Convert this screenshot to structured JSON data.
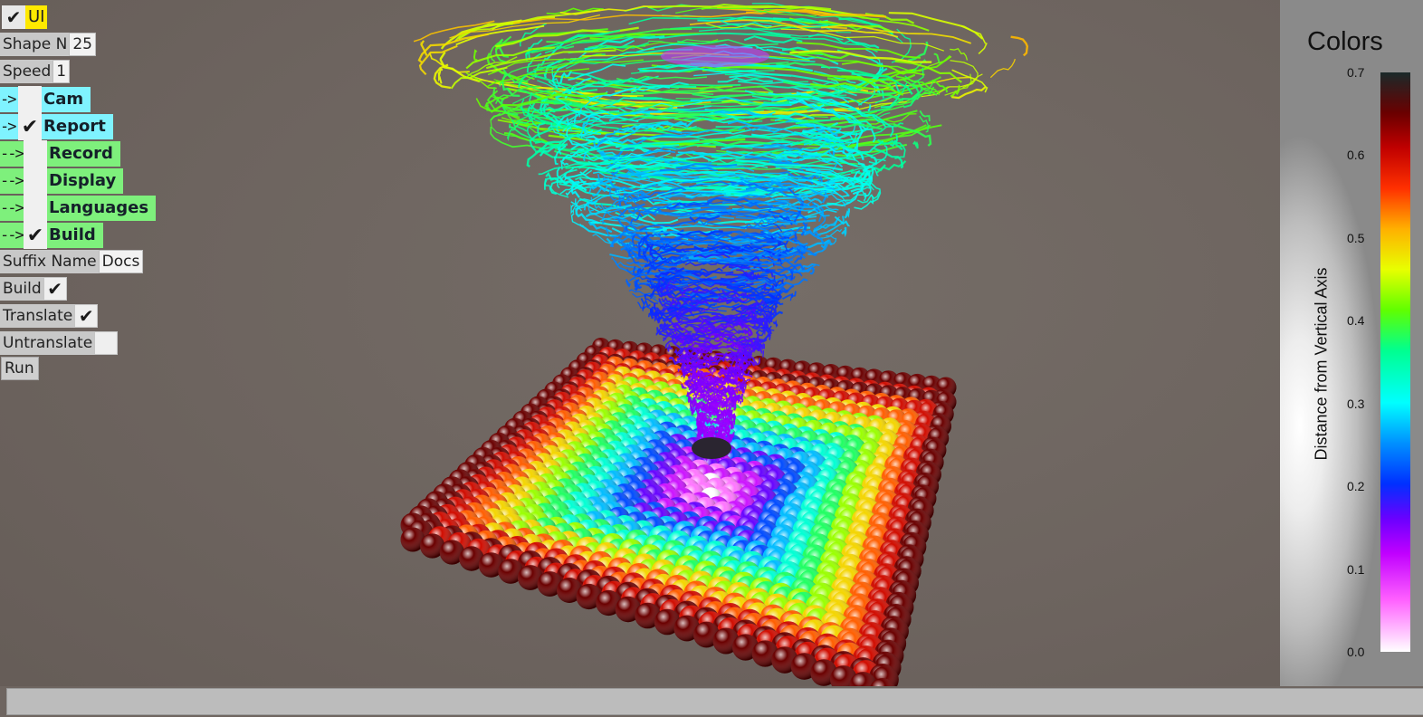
{
  "ui_toggle": {
    "label": "UI",
    "checked": true,
    "accent": "#ffe900"
  },
  "fields": {
    "shape_n": {
      "label": "Shape N",
      "value": "25"
    },
    "speed": {
      "label": "Speed",
      "value": "1"
    }
  },
  "nav": [
    {
      "arrow": "->",
      "label": "Cam",
      "checked": false,
      "color": "#7ff3ff"
    },
    {
      "arrow": "->",
      "label": "Report",
      "checked": true,
      "color": "#7ff3ff"
    },
    {
      "arrow": "-->",
      "label": "Record",
      "checked": false,
      "color": "#7ef07c"
    },
    {
      "arrow": "-->",
      "label": "Display",
      "checked": false,
      "color": "#7ef07c"
    },
    {
      "arrow": "-->",
      "label": "Languages",
      "checked": false,
      "color": "#7ef07c"
    },
    {
      "arrow": "-->",
      "label": "Build",
      "checked": true,
      "color": "#7ef07c"
    }
  ],
  "build_options": {
    "suffix_name": {
      "label": "Suffix Name",
      "value": "Docs"
    },
    "build": {
      "label": "Build",
      "checked": true
    },
    "translate": {
      "label": "Translate",
      "checked": true
    },
    "untranslate": {
      "label": "Untranslate",
      "checked": false
    },
    "run_label": "Run"
  },
  "legend": {
    "title": "Colors",
    "axis_label": "Distance from Vertical Axis",
    "ticks": [
      "0.0",
      "0.1",
      "0.2",
      "0.3",
      "0.4",
      "0.5",
      "0.6",
      "0.7"
    ],
    "range": [
      0.0,
      0.7
    ]
  },
  "scene": {
    "grid_n": 25,
    "description_icon": "tornado-particles-icon"
  },
  "checkmark_glyph": "✔"
}
